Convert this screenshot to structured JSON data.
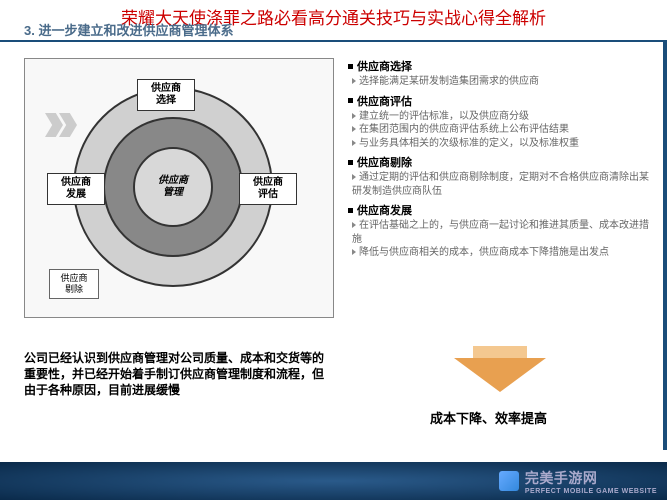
{
  "page_title": "荣耀大天使涤罪之路必看高分通关技巧与实战心得全解析",
  "section_header": "3. 进一步建立和改进供应商管理体系",
  "diagram": {
    "center_label": "供应商\n管理",
    "boxes": {
      "select": "供应商\n选择",
      "eval": "供应商\n评估",
      "dev": "供应商\n发展",
      "elim": "供应商\n剔除"
    },
    "outer_color": "#d0d0d0",
    "mid_color": "#888888",
    "inner_color": "#d8d8d8"
  },
  "items": [
    {
      "title": "供应商选择",
      "body": [
        "选择能满足某研发制造集团需求的供应商"
      ]
    },
    {
      "title": "供应商评估",
      "body": [
        "建立统一的评估标准，以及供应商分级",
        "在集团范围内的供应商评估系统上公布评估结果",
        "与业务具体相关的次级标准的定义，以及标准权重"
      ]
    },
    {
      "title": "供应商剔除",
      "body": [
        "通过定期的评估和供应商剔除制度，定期对不合格供应商清除出某研发制造供应商队伍"
      ]
    },
    {
      "title": "供应商发展",
      "body": [
        "在评估基础之上的，与供应商一起讨论和推进其质量、成本改进措施",
        "降低与供应商相关的成本，供应商成本下降措施是出发点"
      ]
    }
  ],
  "bottom_left": "公司已经认识到供应商管理对公司质量、成本和交货等的重要性，并已经开始着手制订供应商管理制度和流程，但由于各种原因，目前进展缓慢",
  "result_text": "成本下降、效率提高",
  "footer": {
    "brand": "完美手游网",
    "sub": "PERFECT MOBILE GAME WEBSITE"
  },
  "arrow_color": "#e8a050"
}
